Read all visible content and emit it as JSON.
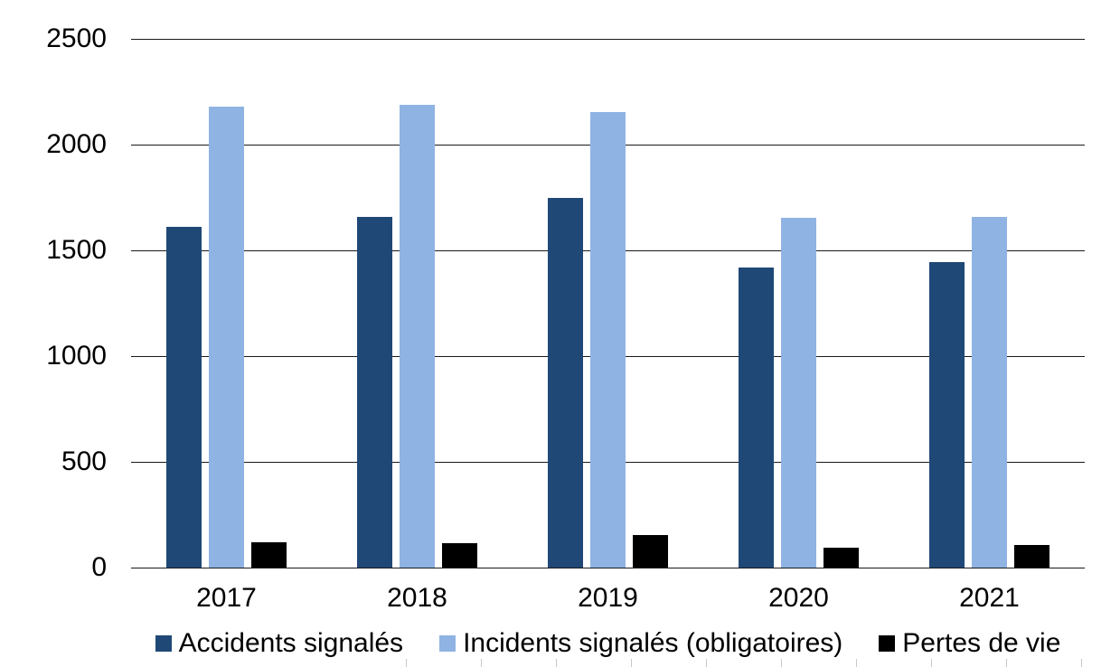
{
  "chart_data": {
    "type": "bar",
    "title": "",
    "xlabel": "",
    "ylabel": "",
    "categories": [
      "2017",
      "2018",
      "2019",
      "2020",
      "2021"
    ],
    "series": [
      {
        "name": "Accidents signalés",
        "color": "#1F4876",
        "values": [
          1613,
          1660,
          1750,
          1418,
          1445
        ]
      },
      {
        "name": "Incidents signalés (obligatoires)",
        "color": "#8FB3E2",
        "values": [
          2180,
          2187,
          2152,
          1655,
          1659
        ]
      },
      {
        "name": "Pertes de vie",
        "color": "#000000",
        "values": [
          120,
          114,
          154,
          95,
          105
        ]
      }
    ],
    "ylim": [
      0,
      2500
    ],
    "y_ticks": [
      0,
      500,
      1000,
      1500,
      2000,
      2500
    ],
    "y_tick_labels": [
      "0",
      "500",
      "1000",
      "1500",
      "2000",
      "2500"
    ],
    "grid": true,
    "gridline_color": "#1a1a1a",
    "legend_position": "bottom",
    "background_color": "#ffffff",
    "text_color": "#000000"
  }
}
